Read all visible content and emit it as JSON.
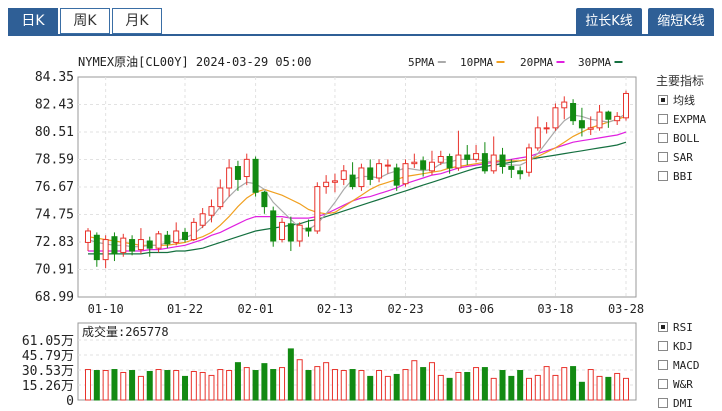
{
  "tabs": [
    {
      "label": "日K",
      "active": true
    },
    {
      "label": "周K",
      "active": false
    },
    {
      "label": "月K",
      "active": false
    }
  ],
  "buttons": {
    "stretch": "拉长K线",
    "shrink": "缩短K线"
  },
  "colors": {
    "up": "#e8332c",
    "down": "#128a12",
    "ma5": "#aaaaaa",
    "ma10": "#f0a020",
    "ma20": "#e020e0",
    "ma30": "#157040",
    "accent": "#2f5f96"
  },
  "header": {
    "title": "NYMEX原油[CL00Y] 2024-03-29 05:00",
    "ma_labels": [
      "5PMA",
      "10PMA",
      "20PMA",
      "30PMA"
    ]
  },
  "indicator_panel": {
    "title": "主要指标",
    "items": [
      {
        "label": "均线",
        "checked": true
      },
      {
        "label": "EXPMA",
        "checked": false
      },
      {
        "label": "BOLL",
        "checked": false
      },
      {
        "label": "SAR",
        "checked": false
      },
      {
        "label": "BBI",
        "checked": false
      }
    ]
  },
  "sub_indicator_panel": {
    "items": [
      {
        "label": "RSI",
        "checked": true
      },
      {
        "label": "KDJ",
        "checked": false
      },
      {
        "label": "MACD",
        "checked": false
      },
      {
        "label": "W&R",
        "checked": false
      },
      {
        "label": "DMI",
        "checked": false
      }
    ]
  },
  "volume": {
    "label": "成交量:265778",
    "ticks": [
      "61.05万",
      "45.79万",
      "30.53万",
      "15.26万",
      "0"
    ]
  },
  "chart_data": {
    "type": "candlestick",
    "price_ticks": [
      "84.35",
      "82.43",
      "80.51",
      "78.59",
      "76.67",
      "74.75",
      "72.83",
      "70.91",
      "68.99"
    ],
    "ylim": [
      68.99,
      84.35
    ],
    "x_ticks": [
      "01-10",
      "01-22",
      "02-01",
      "02-13",
      "02-23",
      "03-06",
      "03-18",
      "03-28"
    ],
    "x_tick_index": [
      2,
      11,
      19,
      28,
      36,
      44,
      53,
      61
    ],
    "volume_ylim": [
      0,
      61.05
    ],
    "candles": [
      [
        72.8,
        73.6,
        73.8,
        72.2
      ],
      [
        73.3,
        71.6,
        73.5,
        71.1
      ],
      [
        71.6,
        73.0,
        73.3,
        71.0
      ],
      [
        73.2,
        72.0,
        73.5,
        71.5
      ],
      [
        72.1,
        73.1,
        73.4,
        71.8
      ],
      [
        73.0,
        72.2,
        73.3,
        71.9
      ],
      [
        72.3,
        73.0,
        73.8,
        72.0
      ],
      [
        72.9,
        72.4,
        73.2,
        71.8
      ],
      [
        72.4,
        73.4,
        73.6,
        72.1
      ],
      [
        73.3,
        72.7,
        73.6,
        72.4
      ],
      [
        72.8,
        73.6,
        74.2,
        72.6
      ],
      [
        73.5,
        73.0,
        73.8,
        72.8
      ],
      [
        73.0,
        74.2,
        74.5,
        72.9
      ],
      [
        74.0,
        74.8,
        75.2,
        73.8
      ],
      [
        74.7,
        75.3,
        75.8,
        74.2
      ],
      [
        75.3,
        76.6,
        77.2,
        75.1
      ],
      [
        76.6,
        78.0,
        78.6,
        76.0
      ],
      [
        78.1,
        77.2,
        78.5,
        76.4
      ],
      [
        77.4,
        78.6,
        79.0,
        76.8
      ],
      [
        78.6,
        76.3,
        78.8,
        76.0
      ],
      [
        76.3,
        75.3,
        76.4,
        74.8
      ],
      [
        75.0,
        72.9,
        75.3,
        72.5
      ],
      [
        73.0,
        74.2,
        74.5,
        72.8
      ],
      [
        74.1,
        72.9,
        74.6,
        72.2
      ],
      [
        72.9,
        74.0,
        74.2,
        72.5
      ],
      [
        73.8,
        73.6,
        74.4,
        73.2
      ],
      [
        73.6,
        76.7,
        77.0,
        73.4
      ],
      [
        76.7,
        77.0,
        77.5,
        76.2
      ],
      [
        77.0,
        77.1,
        77.6,
        76.3
      ],
      [
        77.2,
        77.8,
        78.2,
        76.8
      ],
      [
        77.5,
        76.7,
        78.4,
        76.5
      ],
      [
        76.7,
        78.0,
        78.3,
        76.4
      ],
      [
        78.0,
        77.2,
        78.6,
        76.8
      ],
      [
        77.3,
        78.3,
        78.6,
        77.0
      ],
      [
        78.2,
        78.2,
        78.6,
        77.6
      ],
      [
        78.0,
        76.8,
        78.3,
        76.4
      ],
      [
        76.9,
        78.3,
        78.6,
        76.7
      ],
      [
        78.3,
        78.4,
        79.0,
        78.0
      ],
      [
        78.5,
        77.9,
        78.8,
        77.4
      ],
      [
        77.8,
        78.4,
        79.2,
        77.5
      ],
      [
        78.4,
        78.8,
        79.2,
        78.2
      ],
      [
        78.8,
        78.0,
        79.0,
        77.6
      ],
      [
        78.0,
        78.9,
        80.6,
        77.8
      ],
      [
        78.9,
        78.6,
        79.6,
        78.2
      ],
      [
        78.6,
        79.0,
        79.6,
        78.4
      ],
      [
        79.0,
        77.8,
        79.8,
        77.6
      ],
      [
        77.8,
        78.9,
        80.2,
        77.6
      ],
      [
        78.9,
        78.1,
        79.4,
        77.6
      ],
      [
        78.1,
        77.9,
        78.6,
        77.3
      ],
      [
        77.8,
        77.6,
        78.1,
        77.2
      ],
      [
        77.7,
        79.4,
        79.7,
        77.4
      ],
      [
        79.4,
        80.8,
        81.6,
        79.2
      ],
      [
        80.8,
        80.8,
        81.2,
        80.4
      ],
      [
        80.8,
        82.2,
        82.5,
        80.6
      ],
      [
        82.2,
        82.6,
        83.0,
        81.4
      ],
      [
        82.5,
        81.3,
        82.8,
        81.0
      ],
      [
        81.3,
        80.8,
        82.2,
        80.2
      ],
      [
        80.7,
        80.8,
        81.6,
        80.3
      ],
      [
        80.8,
        81.9,
        82.4,
        80.6
      ],
      [
        81.9,
        81.4,
        82.0,
        80.8
      ],
      [
        81.3,
        81.6,
        81.9,
        81.0
      ],
      [
        81.5,
        83.2,
        83.4,
        81.3
      ]
    ],
    "ma5": [
      73.0,
      72.8,
      72.7,
      72.6,
      72.6,
      72.5,
      72.5,
      72.6,
      72.6,
      72.8,
      72.9,
      73.1,
      73.4,
      73.9,
      74.5,
      75.3,
      76.0,
      76.6,
      77.0,
      76.9,
      76.5,
      75.6,
      75.0,
      74.4,
      73.8,
      73.7,
      74.1,
      74.8,
      75.6,
      76.5,
      77.2,
      77.4,
      77.4,
      77.3,
      77.6,
      77.8,
      78.0,
      77.9,
      77.8,
      77.9,
      78.3,
      78.4,
      78.6,
      78.6,
      78.6,
      78.5,
      78.4,
      78.3,
      78.2,
      78.2,
      78.5,
      79.0,
      79.8,
      80.6,
      81.3,
      81.7,
      81.6,
      81.4,
      81.3,
      81.2,
      81.4,
      81.8
    ],
    "ma10": [
      73.2,
      73.1,
      73.0,
      72.9,
      72.8,
      72.7,
      72.6,
      72.6,
      72.6,
      72.6,
      72.7,
      72.8,
      73.0,
      73.2,
      73.5,
      74.0,
      74.6,
      75.3,
      75.9,
      76.3,
      76.5,
      76.3,
      76.1,
      75.8,
      75.5,
      75.1,
      74.9,
      74.8,
      74.9,
      75.3,
      75.7,
      76.1,
      76.5,
      76.8,
      77.0,
      77.2,
      77.4,
      77.5,
      77.6,
      77.7,
      77.8,
      78.0,
      78.1,
      78.2,
      78.3,
      78.4,
      78.5,
      78.5,
      78.5,
      78.5,
      78.6,
      78.8,
      79.1,
      79.4,
      79.8,
      80.2,
      80.5,
      80.8,
      81.0,
      81.2,
      81.4,
      81.6
    ],
    "ma20": [
      72.2,
      72.2,
      72.2,
      72.2,
      72.2,
      72.2,
      72.2,
      72.3,
      72.3,
      72.4,
      72.5,
      72.6,
      72.8,
      73.0,
      73.3,
      73.5,
      73.8,
      74.1,
      74.4,
      74.6,
      74.6,
      74.6,
      74.6,
      74.5,
      74.5,
      74.5,
      74.6,
      74.8,
      75.1,
      75.4,
      75.7,
      75.9,
      76.0,
      76.2,
      76.4,
      76.6,
      76.9,
      77.1,
      77.3,
      77.5,
      77.6,
      77.8,
      78.0,
      78.1,
      78.2,
      78.3,
      78.4,
      78.5,
      78.6,
      78.7,
      78.8,
      79.0,
      79.2,
      79.4,
      79.6,
      79.8,
      79.9,
      80.0,
      80.1,
      80.2,
      80.3,
      80.5
    ],
    "ma30": [
      72.0,
      72.0,
      72.0,
      72.0,
      72.0,
      72.0,
      72.0,
      72.1,
      72.1,
      72.1,
      72.2,
      72.2,
      72.3,
      72.4,
      72.6,
      72.8,
      73.0,
      73.2,
      73.4,
      73.6,
      73.7,
      73.8,
      73.9,
      74.0,
      74.1,
      74.3,
      74.4,
      74.6,
      74.8,
      75.0,
      75.2,
      75.4,
      75.6,
      75.8,
      76.0,
      76.2,
      76.4,
      76.6,
      76.8,
      77.0,
      77.2,
      77.4,
      77.6,
      77.8,
      78.0,
      78.1,
      78.2,
      78.3,
      78.4,
      78.5,
      78.6,
      78.7,
      78.8,
      78.9,
      79.0,
      79.1,
      79.2,
      79.3,
      79.4,
      79.5,
      79.6,
      79.8
    ],
    "volume_values": [
      31,
      30,
      30,
      31,
      28,
      30,
      24,
      29,
      31,
      30,
      30,
      24,
      29,
      28,
      25,
      31,
      30,
      38,
      33,
      30,
      37,
      31,
      33,
      52,
      41,
      30,
      34,
      38,
      31,
      30,
      31,
      30,
      24,
      30,
      24,
      26,
      31,
      40,
      33,
      38,
      25,
      22,
      28,
      28,
      33,
      33,
      22,
      30,
      24,
      30,
      22,
      25,
      34,
      25,
      33,
      34,
      18,
      31,
      24,
      23,
      27,
      22
    ]
  }
}
